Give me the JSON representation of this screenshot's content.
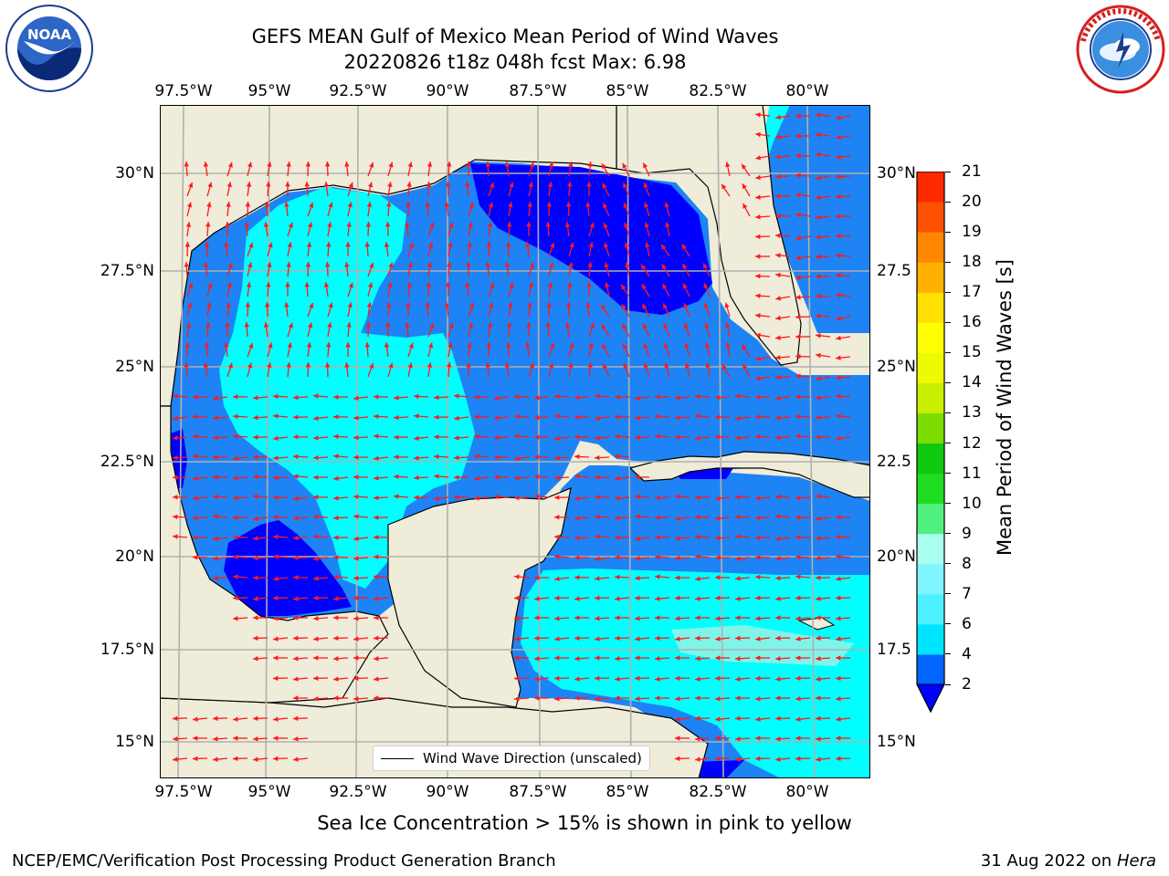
{
  "title": {
    "line1": "GEFS MEAN Gulf of Mexico Mean Period of Wind Waves",
    "line2": "20220826 t18z 048h fcst   Max: 6.98"
  },
  "logos": {
    "left": {
      "text": "NOAA",
      "ring_text": "NATIONAL OCEANIC AND ATMOSPHERIC ADMINISTRATION · U.S. DEPARTMENT OF COMMERCE",
      "icon": "noaa-logo-icon"
    },
    "right": {
      "ring_text": "NATIONAL WEATHER SERVICE",
      "icon": "nws-logo-icon"
    }
  },
  "axes": {
    "lon_labels": [
      "97.5°W",
      "95°W",
      "92.5°W",
      "90°W",
      "87.5°W",
      "85°W",
      "82.5°W",
      "80°W"
    ],
    "lat_labels_left": [
      "30°N",
      "27.5°N",
      "25°N",
      "22.5°N",
      "20°N",
      "17.5°N",
      "15°N"
    ],
    "lat_labels_right": [
      "30°N",
      "27.5",
      "25°N",
      "22.5",
      "20°N",
      "17.5",
      "15°N"
    ]
  },
  "legend": {
    "label": "Wind Wave Direction (unscaled)"
  },
  "colorbar": {
    "label": "Mean Period of Wind Waves [s]",
    "ticks": [
      "2",
      "4",
      "6",
      "7",
      "8",
      "9",
      "10",
      "11",
      "12",
      "13",
      "14",
      "15",
      "16",
      "17",
      "18",
      "19",
      "20",
      "21"
    ],
    "colors": [
      "#0066ff",
      "#00e5ff",
      "#4df0ff",
      "#80f5ff",
      "#a8fff0",
      "#50f080",
      "#20dd20",
      "#10c810",
      "#7ddd00",
      "#c8f000",
      "#eefa00",
      "#ffff00",
      "#ffe000",
      "#ffb000",
      "#ff8800",
      "#ff5000",
      "#ff2a00",
      "#ff0000"
    ],
    "extend_color": "#0000ff"
  },
  "map_colors": {
    "land": "#efecd9",
    "ocean_2_4": "#1e83f4",
    "ocean_below_2": "#0000ff",
    "ocean_4_6": "#00ffff",
    "ocean_6_7": "#7ff5ea",
    "arrow": "#ff1a1a"
  },
  "subtitle": "Sea Ice Concentration > 15% is shown in pink to yellow",
  "footer": {
    "left": "NCEP/EMC/Verification Post Processing Product Generation Branch",
    "right_date": "31 Aug 2022 on ",
    "right_machine": "Hera"
  }
}
